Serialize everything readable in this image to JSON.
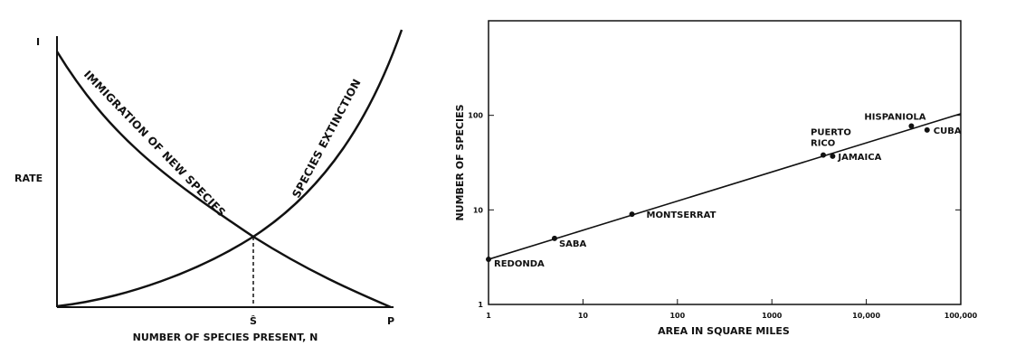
{
  "chart_data": [
    {
      "type": "line",
      "ylabel": "RATE",
      "xlabel": "NUMBER OF SPECIES PRESENT, N",
      "y_axis_marker": "I",
      "x_markers": [
        "Ŝ",
        "P"
      ],
      "series": [
        {
          "name": "IMMIGRATION OF NEW SPECIES"
        },
        {
          "name": "SPECIES EXTINCTION"
        }
      ]
    },
    {
      "type": "scatter",
      "xlabel": "AREA IN SQUARE MILES",
      "ylabel": "NUMBER OF SPECIES",
      "xscale": "log",
      "yscale": "log",
      "xlim": [
        1,
        100000
      ],
      "ylim": [
        1,
        1000
      ],
      "x_tick_labels": [
        "1",
        "10",
        "100",
        "1000",
        "10,000",
        "100,000"
      ],
      "y_tick_labels": [
        "1",
        "10",
        "100"
      ],
      "trend_line": {
        "x": [
          1,
          100000
        ],
        "y": [
          3,
          104
        ]
      },
      "points": [
        {
          "label": "REDONDA",
          "x": 1,
          "y": 3
        },
        {
          "label": "SABA",
          "x": 5,
          "y": 5
        },
        {
          "label": "MONTSERRAT",
          "x": 33,
          "y": 9
        },
        {
          "label": "PUERTO RICO",
          "x": 3500,
          "y": 38
        },
        {
          "label": "JAMAICA",
          "x": 4400,
          "y": 37
        },
        {
          "label": "HISPANIOLA",
          "x": 30000,
          "y": 77
        },
        {
          "label": "CUBA",
          "x": 44000,
          "y": 70
        }
      ]
    }
  ]
}
